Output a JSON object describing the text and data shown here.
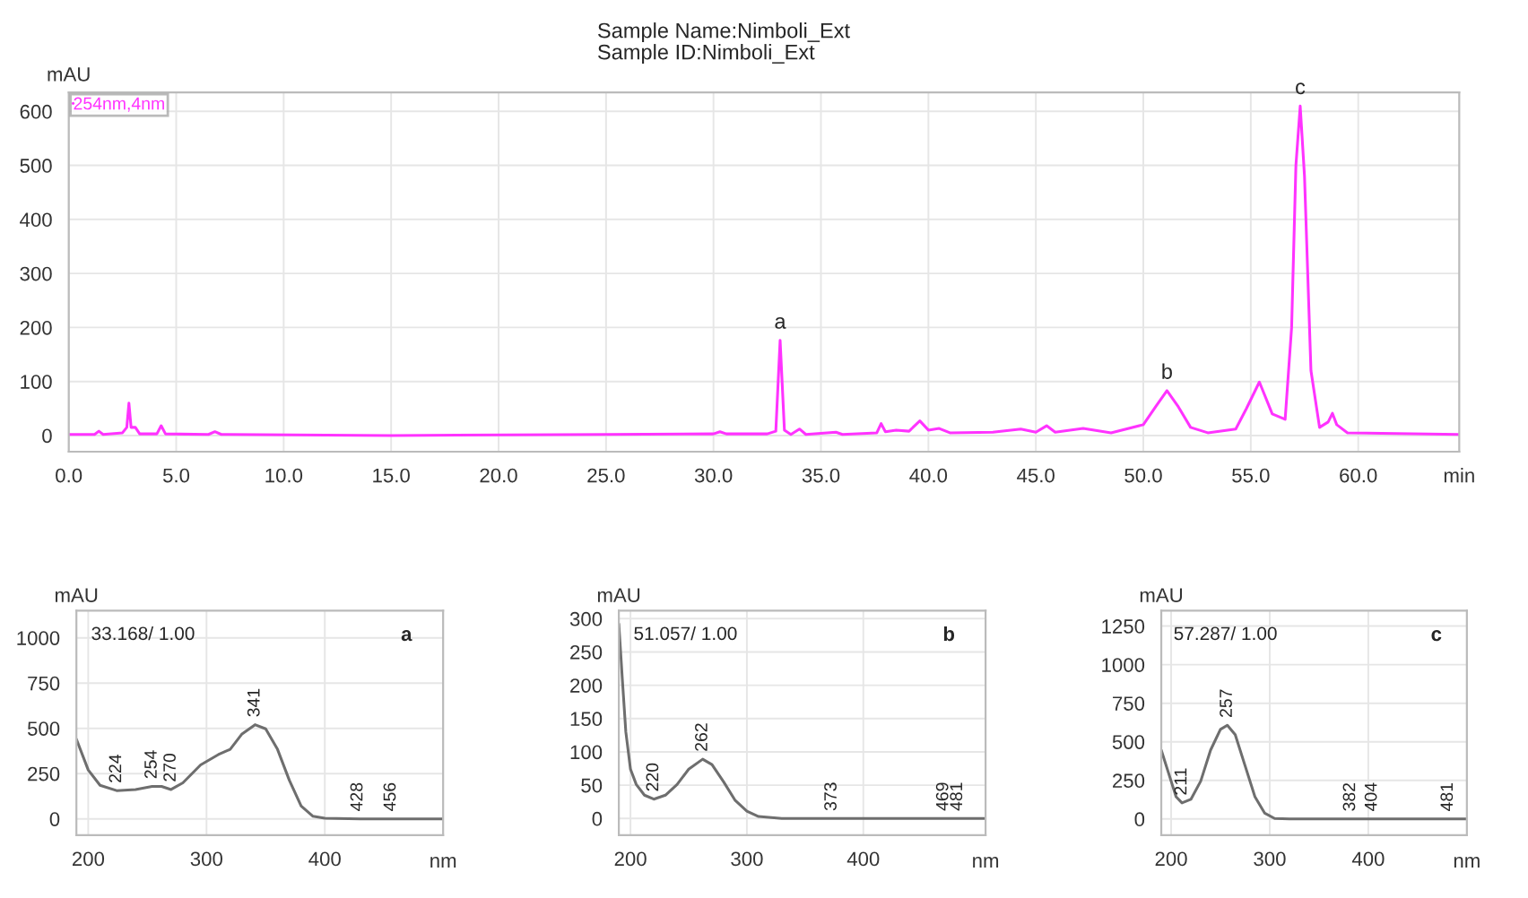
{
  "chart_data": [
    {
      "type": "line",
      "title": "Sample Name:Nimboli_Ext",
      "subtitle": "Sample ID:Nimboli_Ext",
      "xlabel": "min",
      "ylabel": "mAU",
      "x": [
        0,
        1.2,
        1.4,
        1.6,
        2.5,
        2.7,
        2.8,
        2.9,
        3.1,
        3.3,
        4.1,
        4.3,
        4.5,
        6.5,
        6.8,
        7.1,
        15,
        25,
        30,
        30.3,
        30.6,
        32.5,
        32.9,
        33.1,
        33.3,
        33.6,
        34.0,
        34.3,
        35.7,
        36,
        37.6,
        37.8,
        38,
        38.5,
        39.1,
        39.6,
        40,
        40.5,
        41,
        43,
        44.3,
        45,
        45.5,
        45.9,
        47.2,
        48.5,
        50,
        50.6,
        51.1,
        51.6,
        52.2,
        53,
        54.3,
        54.8,
        55.4,
        56,
        56.6,
        56.9,
        57.1,
        57.3,
        57.5,
        57.8,
        58.2,
        58.6,
        58.8,
        59.0,
        59.5,
        64.7
      ],
      "series": [
        {
          "name": "254nm,4nm",
          "color": "#ff33ff",
          "values": [
            2,
            2,
            8,
            2,
            5,
            15,
            60,
            15,
            15,
            3,
            3,
            18,
            3,
            2,
            7,
            2,
            0,
            2,
            3,
            7,
            3,
            3,
            8,
            176,
            10,
            2,
            12,
            2,
            6,
            2,
            5,
            22,
            7,
            10,
            8,
            27,
            10,
            13,
            5,
            6,
            12,
            6,
            18,
            6,
            13,
            5,
            20,
            55,
            83,
            55,
            15,
            5,
            12,
            50,
            99,
            40,
            30,
            200,
            500,
            610,
            480,
            120,
            15,
            25,
            41,
            20,
            5,
            2
          ]
        }
      ],
      "xlim": [
        0,
        64.7
      ],
      "ylim": [
        -30,
        635
      ],
      "xticks": [
        {
          "value": 0,
          "label": "0.0"
        },
        {
          "value": 5,
          "label": "5.0"
        },
        {
          "value": 10,
          "label": "10.0"
        },
        {
          "value": 15,
          "label": "15.0"
        },
        {
          "value": 20,
          "label": "20.0"
        },
        {
          "value": 25,
          "label": "25.0"
        },
        {
          "value": 30,
          "label": "30.0"
        },
        {
          "value": 35,
          "label": "35.0"
        },
        {
          "value": 40,
          "label": "40.0"
        },
        {
          "value": 45,
          "label": "45.0"
        },
        {
          "value": 50,
          "label": "50.0"
        },
        {
          "value": 55,
          "label": "55.0"
        },
        {
          "value": 60,
          "label": "60.0"
        }
      ],
      "yticks": [
        0,
        100,
        200,
        300,
        400,
        500,
        600
      ],
      "grid": true,
      "legend": "top left",
      "annotations": [
        {
          "text": "a",
          "x": 33.1,
          "y": 176
        },
        {
          "text": "b",
          "x": 51.1,
          "y": 83
        },
        {
          "text": "c",
          "x": 57.3,
          "y": 610
        }
      ]
    },
    {
      "type": "line",
      "xlabel": "nm",
      "ylabel": "mAU",
      "x": [
        190,
        200,
        210,
        224,
        240,
        254,
        262,
        270,
        280,
        295,
        310,
        320,
        330,
        341,
        350,
        360,
        370,
        380,
        390,
        400,
        430,
        500
      ],
      "series": [
        {
          "color": "#6e6e6e",
          "values": [
            440,
            270,
            185,
            156,
            162,
            179,
            179,
            162,
            199,
            298,
            355,
            384,
            469,
            520,
            497,
            384,
            213,
            71,
            14,
            3,
            0,
            0
          ]
        }
      ],
      "xlim": [
        190,
        500
      ],
      "ylim": [
        -90,
        1150
      ],
      "xticks": [
        200,
        300,
        400
      ],
      "yticks": [
        0,
        250,
        500,
        750,
        1000
      ],
      "grid": true,
      "annotations": [
        "33.168/ 1.00",
        "a",
        {
          "text": "224",
          "x": 224,
          "y": 156
        },
        {
          "text": "254",
          "x": 254,
          "y": 179
        },
        {
          "text": "270",
          "x": 270,
          "y": 162
        },
        {
          "text": "341",
          "x": 341,
          "y": 520
        },
        {
          "text": "428",
          "x": 428,
          "y": 0
        },
        {
          "text": "456",
          "x": 456,
          "y": 0
        }
      ]
    },
    {
      "type": "line",
      "xlabel": "nm",
      "ylabel": "mAU",
      "x": [
        190,
        193,
        196,
        200,
        205,
        212,
        220,
        230,
        240,
        250,
        262,
        270,
        280,
        290,
        300,
        310,
        330,
        505
      ],
      "series": [
        {
          "color": "#6e6e6e",
          "values": [
            292,
            209,
            130,
            74,
            51,
            35,
            29,
            35,
            51,
            74,
            89,
            81,
            55,
            27,
            11,
            3,
            0,
            0
          ]
        }
      ],
      "xlim": [
        190,
        505
      ],
      "ylim": [
        -25,
        312
      ],
      "xticks": [
        200,
        300,
        400
      ],
      "yticks": [
        0,
        50,
        100,
        150,
        200,
        250,
        300
      ],
      "grid": true,
      "annotations": [
        "51.057/ 1.00",
        "b",
        {
          "text": "220",
          "x": 220,
          "y": 29
        },
        {
          "text": "262",
          "x": 262,
          "y": 89
        },
        {
          "text": "373",
          "x": 373,
          "y": 0
        },
        {
          "text": "469",
          "x": 469,
          "y": 0
        },
        {
          "text": "481",
          "x": 481,
          "y": 0
        }
      ]
    },
    {
      "type": "line",
      "xlabel": "nm",
      "ylabel": "mAU",
      "x": [
        190,
        200,
        205,
        211,
        220,
        230,
        240,
        250,
        257,
        265,
        275,
        285,
        295,
        305,
        320,
        500
      ],
      "series": [
        {
          "color": "#6e6e6e",
          "values": [
            446,
            245,
            144,
            104,
            127,
            245,
            446,
            580,
            607,
            546,
            345,
            144,
            37,
            3,
            0,
            0
          ]
        }
      ],
      "xlim": [
        190,
        500
      ],
      "ylim": [
        -105,
        1350
      ],
      "xticks": [
        200,
        300,
        400
      ],
      "yticks": [
        0,
        250,
        500,
        750,
        1000,
        1250
      ],
      "grid": true,
      "annotations": [
        "57.287/ 1.00",
        "c",
        {
          "text": "211",
          "x": 211,
          "y": 104
        },
        {
          "text": "257",
          "x": 257,
          "y": 607
        },
        {
          "text": "382",
          "x": 382,
          "y": 0
        },
        {
          "text": "404",
          "x": 404,
          "y": 0
        },
        {
          "text": "481",
          "x": 481,
          "y": 0
        }
      ]
    }
  ]
}
